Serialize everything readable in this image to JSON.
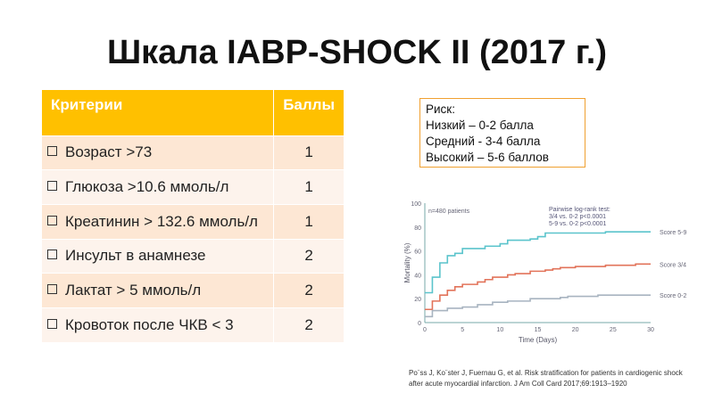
{
  "title": "Шкала IABP-SHOCK II (2017 г.)",
  "table": {
    "headers": [
      "Критерии",
      "Баллы"
    ],
    "rows": [
      [
        "Возраст >73",
        "1"
      ],
      [
        "Глюкоза >10.6 ммоль/л",
        "1"
      ],
      [
        "Креатинин > 132.6 ммоль/л",
        "1"
      ],
      [
        "Инсульт в анамнезе",
        "2"
      ],
      [
        "Лактат > 5 ммоль/л",
        "2"
      ],
      [
        "Кровоток после ЧКВ < 3",
        "2"
      ]
    ]
  },
  "risk": {
    "title": "Риск:",
    "lines": [
      "Низкий – 0-2 балла",
      "Средний - 3-4 балла",
      "Высокий – 5-6 баллов"
    ]
  },
  "citation": [
    "Po¨ss J, Ko¨ster J, Fuernau G, et al. Risk stratification for patients in cardiogenic shock",
    "after acute myocardial infarction. J Am Coll Card 2017;69:1913–1920"
  ],
  "chart_data": {
    "type": "line",
    "xlabel": "Time (Days)",
    "ylabel": "Mortality (%)",
    "xlim": [
      0,
      30
    ],
    "ylim": [
      0,
      100
    ],
    "xticks": [
      0,
      5,
      10,
      15,
      20,
      25,
      30
    ],
    "yticks": [
      0,
      20,
      40,
      60,
      80,
      100
    ],
    "annotations": [
      "n=480 patients",
      "Pairwise log-rank test:",
      "3/4 vs. 0-2 p<0.0001",
      "5-9 vs. 0-2 p<0.0001"
    ],
    "series": [
      {
        "name": "Score 5-9",
        "color": "#5bc4cc",
        "points": [
          [
            0,
            25
          ],
          [
            1,
            38
          ],
          [
            2,
            50
          ],
          [
            3,
            56
          ],
          [
            4,
            58
          ],
          [
            5,
            62
          ],
          [
            8,
            64
          ],
          [
            10,
            66
          ],
          [
            11,
            69
          ],
          [
            14,
            70
          ],
          [
            15,
            72
          ],
          [
            16,
            75
          ],
          [
            24,
            76
          ],
          [
            30,
            76
          ]
        ]
      },
      {
        "name": "Score 3/4",
        "color": "#e2735a",
        "points": [
          [
            0,
            11
          ],
          [
            1,
            18
          ],
          [
            2,
            23
          ],
          [
            3,
            27
          ],
          [
            4,
            30
          ],
          [
            5,
            32
          ],
          [
            7,
            34
          ],
          [
            8,
            36
          ],
          [
            9,
            38
          ],
          [
            11,
            40
          ],
          [
            12,
            41
          ],
          [
            14,
            43
          ],
          [
            16,
            44
          ],
          [
            17,
            45
          ],
          [
            18,
            46
          ],
          [
            20,
            47
          ],
          [
            24,
            48
          ],
          [
            28,
            49
          ],
          [
            30,
            49
          ]
        ]
      },
      {
        "name": "Score 0-2",
        "color": "#a8b4c0",
        "points": [
          [
            0,
            5
          ],
          [
            1,
            10
          ],
          [
            3,
            12
          ],
          [
            5,
            13
          ],
          [
            7,
            15
          ],
          [
            9,
            17
          ],
          [
            11,
            18
          ],
          [
            14,
            20
          ],
          [
            18,
            21
          ],
          [
            19,
            22
          ],
          [
            23,
            23
          ],
          [
            30,
            23
          ]
        ]
      }
    ]
  }
}
